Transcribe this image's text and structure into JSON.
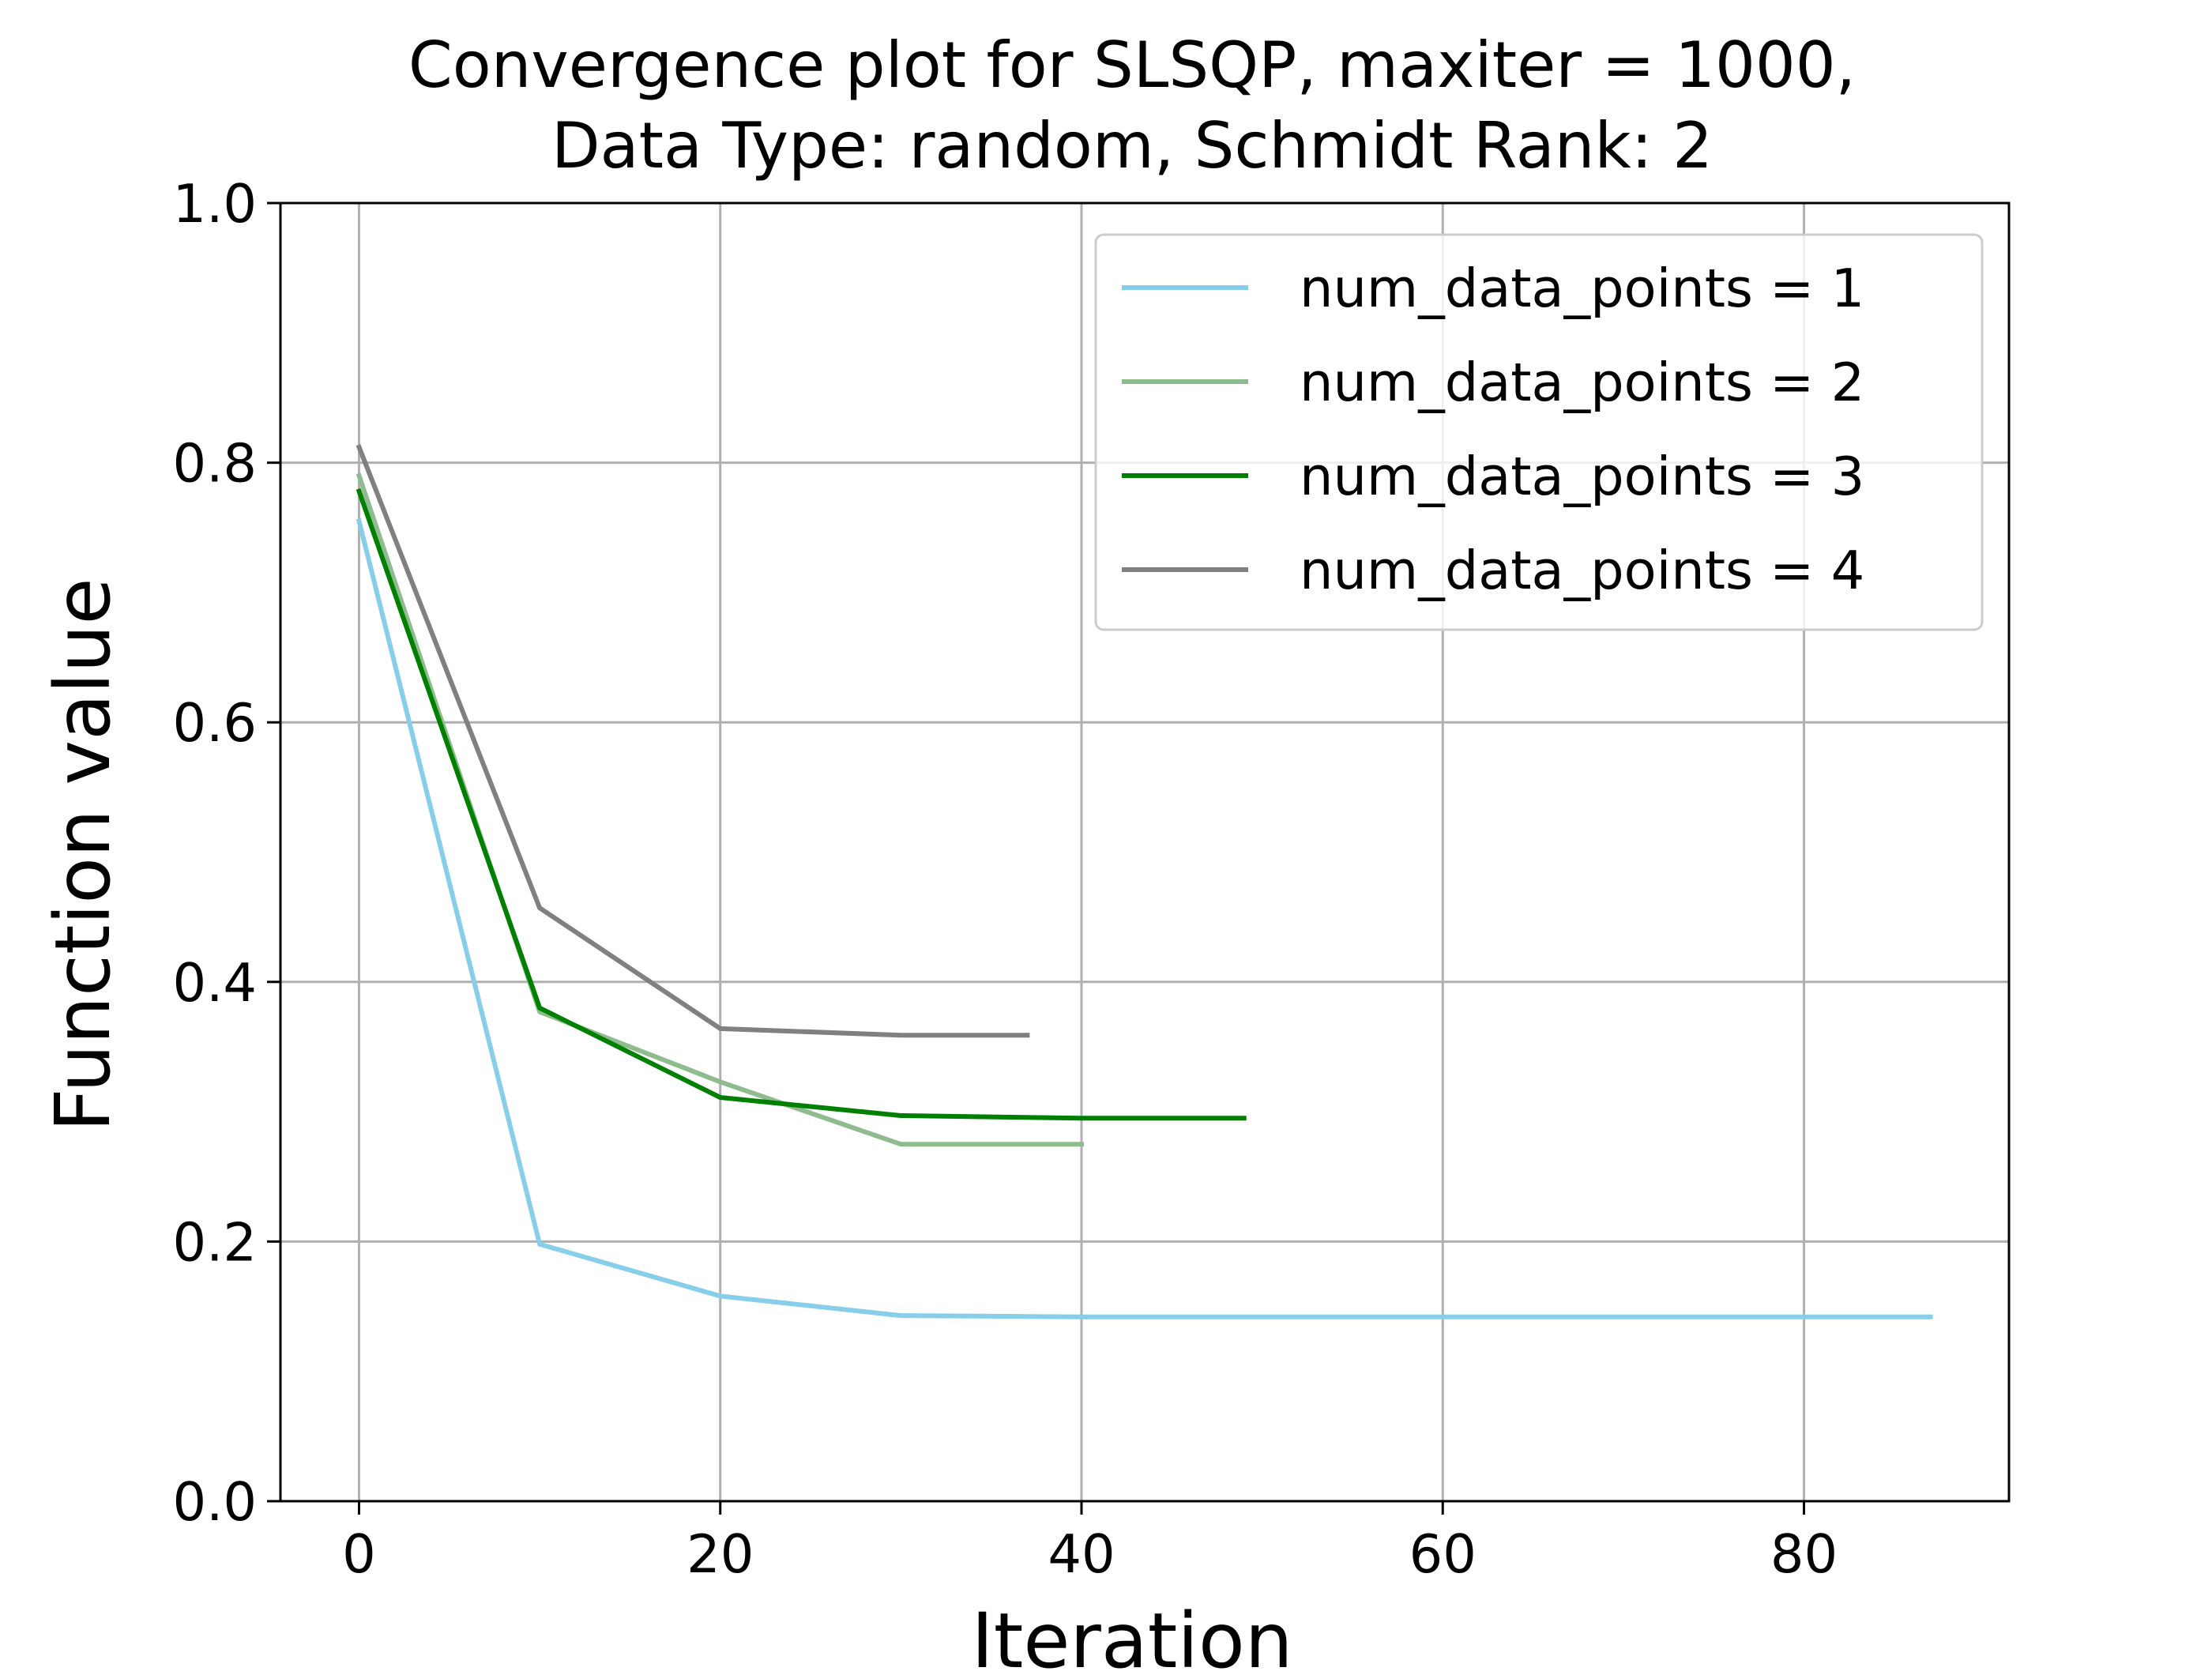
{
  "chart_data": {
    "type": "line",
    "title_line1": "Convergence plot for SLSQP, maxiter = 1000,",
    "title_line2": "Data Type: random, Schmidt Rank: 2",
    "xlabel": "Iteration",
    "ylabel": "Function value",
    "xlim": [
      -4.35,
      91.35
    ],
    "ylim": [
      0.0,
      1.0
    ],
    "xticks": [
      0,
      20,
      40,
      60,
      80
    ],
    "xtick_labels": [
      "0",
      "20",
      "40",
      "60",
      "80"
    ],
    "yticks": [
      0.0,
      0.2,
      0.4,
      0.6,
      0.8,
      1.0
    ],
    "ytick_labels": [
      "0.0",
      "0.2",
      "0.4",
      "0.6",
      "0.8",
      "1.0"
    ],
    "grid": true,
    "legend_position": "upper right",
    "series": [
      {
        "name": "num_data_points = 1",
        "color": "#87ceeb",
        "x": [
          0,
          10,
          20,
          30,
          40,
          50,
          60,
          70,
          80,
          87
        ],
        "y": [
          0.755,
          0.198,
          0.158,
          0.143,
          0.142,
          0.142,
          0.142,
          0.142,
          0.142,
          0.142
        ]
      },
      {
        "name": "num_data_points = 2",
        "color": "#8fbc8f",
        "x": [
          0,
          10,
          20,
          30,
          40
        ],
        "y": [
          0.79,
          0.377,
          0.323,
          0.275,
          0.275
        ]
      },
      {
        "name": "num_data_points = 3",
        "color": "#008000",
        "x": [
          0,
          10,
          20,
          30,
          40,
          49
        ],
        "y": [
          0.778,
          0.38,
          0.311,
          0.297,
          0.295,
          0.295
        ]
      },
      {
        "name": "num_data_points = 4",
        "color": "#808080",
        "x": [
          0,
          10,
          20,
          30,
          37
        ],
        "y": [
          0.812,
          0.457,
          0.364,
          0.359,
          0.359
        ]
      }
    ]
  }
}
